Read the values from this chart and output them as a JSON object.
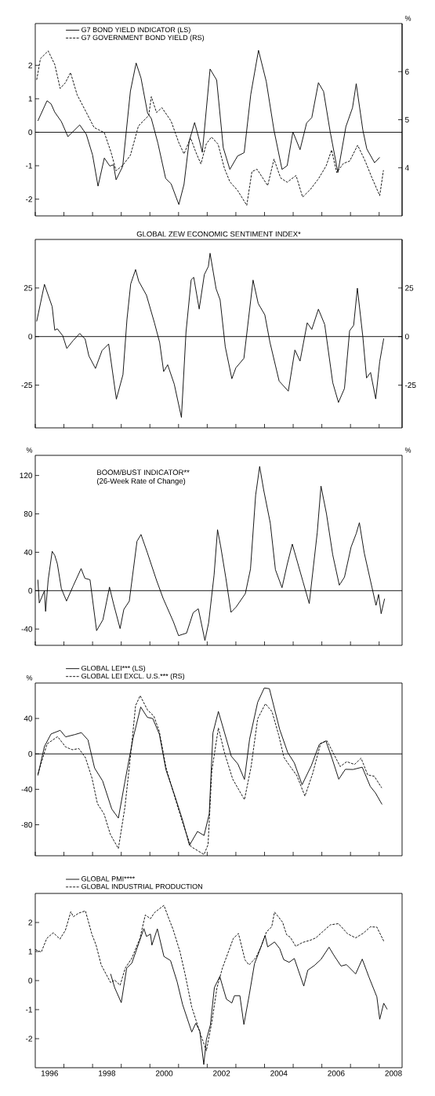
{
  "chart_data": [
    {
      "type": "line",
      "xlim": [
        1996,
        2008.8
      ],
      "ylim": [
        -2.5,
        3.25
      ],
      "yticks": [
        -2,
        -1,
        0,
        1,
        2
      ],
      "y2lim": [
        3,
        7
      ],
      "y2ticks": [
        4,
        5,
        6
      ],
      "y2label": "%",
      "tick_labels": "y",
      "legend": "top left",
      "ref_lines": [
        {
          "axis": "y",
          "value": 0
        }
      ],
      "series": [
        {
          "name": "G7 BOND YIELD INDICATOR (LS)",
          "color": "#000000",
          "line_style": "solid",
          "x": [
            1996.09,
            1996.41,
            1996.55,
            1996.68,
            1996.91,
            1997.14,
            1997.55,
            1997.78,
            1998.0,
            1998.19,
            1998.41,
            1998.6,
            1998.73,
            1998.82,
            1999.05,
            1999.32,
            1999.52,
            1999.69,
            1999.92,
            2000.05,
            2000.28,
            2000.55,
            2000.74,
            2001.01,
            2001.19,
            2001.37,
            2001.56,
            2001.69,
            2001.83,
            2002.1,
            2002.33,
            2002.56,
            2002.79,
            2003.06,
            2003.29,
            2003.52,
            2003.79,
            2004.06,
            2004.33,
            2004.61,
            2004.79,
            2004.99,
            2005.24,
            2005.47,
            2005.65,
            2005.88,
            2006.06,
            2006.29,
            2006.56,
            2006.84,
            2007.07,
            2007.2,
            2007.43,
            2007.57,
            2007.84,
            2008.02
          ],
          "values": [
            0.34,
            0.94,
            0.85,
            0.6,
            0.32,
            -0.13,
            0.22,
            -0.06,
            -0.68,
            -1.61,
            -0.77,
            -1.01,
            -0.97,
            -1.42,
            -1.02,
            1.23,
            2.07,
            1.62,
            0.57,
            0.41,
            -0.33,
            -1.38,
            -1.54,
            -2.16,
            -1.56,
            -0.27,
            0.29,
            -0.12,
            -0.6,
            1.89,
            1.56,
            -0.46,
            -1.11,
            -0.71,
            -0.61,
            1.13,
            2.45,
            1.52,
            0.06,
            -1.11,
            -1.0,
            0.01,
            -0.52,
            0.28,
            0.44,
            1.48,
            1.22,
            0.02,
            -1.2,
            0.17,
            0.73,
            1.45,
            0.07,
            -0.5,
            -0.91,
            -0.75
          ]
        },
        {
          "name": "G7 GOVERNMENT BOND YIELD (RS)",
          "color": "#000000",
          "line_style": "dashed",
          "axis": "y2",
          "x": [
            1996.05,
            1996.18,
            1996.45,
            1996.68,
            1996.87,
            1997.05,
            1997.23,
            1997.46,
            1997.73,
            1998.05,
            1998.41,
            1998.64,
            1998.82,
            1999.05,
            1999.32,
            1999.6,
            1999.96,
            2000.05,
            2000.23,
            2000.42,
            2000.74,
            2001.01,
            2001.19,
            2001.42,
            2001.6,
            2001.78,
            2001.97,
            2002.15,
            2002.38,
            2002.6,
            2002.79,
            2003.06,
            2003.38,
            2003.56,
            2003.74,
            2004.11,
            2004.33,
            2004.56,
            2004.79,
            2005.1,
            2005.33,
            2005.6,
            2005.88,
            2006.15,
            2006.34,
            2006.52,
            2006.75,
            2006.97,
            2007.25,
            2007.52,
            2007.75,
            2008.02,
            2008.15
          ],
          "values": [
            5.83,
            6.27,
            6.43,
            6.15,
            5.65,
            5.77,
            5.98,
            5.52,
            5.21,
            4.84,
            4.73,
            4.33,
            3.94,
            4.05,
            4.26,
            4.87,
            5.09,
            5.48,
            5.15,
            5.25,
            4.97,
            4.52,
            4.29,
            4.62,
            4.33,
            4.08,
            4.5,
            4.64,
            4.49,
            3.99,
            3.71,
            3.53,
            3.22,
            3.92,
            3.97,
            3.63,
            4.18,
            3.79,
            3.7,
            3.84,
            3.39,
            3.55,
            3.77,
            4.04,
            4.37,
            3.9,
            4.09,
            4.14,
            4.47,
            4.13,
            3.79,
            3.42,
            3.95
          ]
        }
      ]
    },
    {
      "type": "line",
      "title": "GLOBAL ZEW ECONOMIC SENTIMENT INDEX*",
      "xlim": [
        1996,
        2008.8
      ],
      "ylim": [
        -47,
        50
      ],
      "yticks": [
        -25,
        0,
        25
      ],
      "y2lim": [
        -47,
        50
      ],
      "y2ticks": [
        -25,
        0,
        25
      ],
      "tick_labels": "y",
      "ref_lines": [
        {
          "axis": "y",
          "value": 0
        }
      ],
      "series": [
        {
          "color": "#000000",
          "line_style": "solid",
          "x": [
            1996.05,
            1996.32,
            1996.59,
            1996.68,
            1996.77,
            1996.96,
            1997.1,
            1997.33,
            1997.55,
            1997.74,
            1997.87,
            1998.1,
            1998.33,
            1998.56,
            1998.83,
            1999.06,
            1999.2,
            1999.33,
            1999.5,
            1999.61,
            1999.88,
            2000.16,
            2000.34,
            2000.48,
            2000.62,
            2000.85,
            2001.1,
            2001.26,
            2001.44,
            2001.53,
            2001.72,
            2001.9,
            2002.04,
            2002.1,
            2002.31,
            2002.45,
            2002.63,
            2002.86,
            2003.0,
            2003.28,
            2003.6,
            2003.78,
            2004.01,
            2004.19,
            2004.51,
            2004.83,
            2005.06,
            2005.24,
            2005.49,
            2005.65,
            2005.88,
            2006.1,
            2006.38,
            2006.58,
            2006.79,
            2006.97,
            2007.11,
            2007.24,
            2007.43,
            2007.56,
            2007.7,
            2007.88,
            2008.02,
            2008.16
          ],
          "values": [
            7.8,
            26.9,
            15.4,
            3.3,
            4.0,
            0.4,
            -6.1,
            -1.9,
            1.6,
            -1.3,
            -9.9,
            -16.4,
            -7.2,
            -3.8,
            -32.2,
            -19.6,
            8.8,
            27.1,
            34.5,
            28.5,
            21.3,
            7.0,
            -3.0,
            -18.0,
            -14.5,
            -24.5,
            -41.6,
            2.3,
            29.2,
            30.5,
            14.2,
            31.9,
            36.1,
            42.9,
            24.6,
            18.9,
            -5.3,
            -21.7,
            -16.1,
            -11.2,
            29.1,
            17,
            11.2,
            -3.0,
            -22.9,
            -28.1,
            -6.9,
            -12.6,
            7.1,
            3.7,
            14.1,
            6.2,
            -23.7,
            -33.9,
            -26.7,
            3.0,
            5.8,
            24.9,
            0,
            -21.3,
            -18.5,
            -32.1,
            -12.9,
            -1.0
          ]
        }
      ]
    },
    {
      "type": "line",
      "title": "BOOM/BUST INDICATOR**",
      "subtitle": "(26-Week Rate of Change)",
      "xlim": [
        1996,
        2008.8
      ],
      "ylim": [
        -57,
        141
      ],
      "yticks": [
        -40,
        0,
        40,
        80,
        120
      ],
      "ylabel": "%",
      "y2label": "%",
      "tick_labels": "y",
      "ref_lines": [
        {
          "axis": "y",
          "value": 0
        }
      ],
      "series": [
        {
          "color": "#000000",
          "line_style": "solid",
          "x": [
            1996.09,
            1996.14,
            1996.32,
            1996.36,
            1996.45,
            1996.59,
            1996.68,
            1996.77,
            1996.91,
            1997.09,
            1997.32,
            1997.6,
            1997.73,
            1997.91,
            1998.14,
            1998.36,
            1998.59,
            1998.73,
            1998.96,
            1999.09,
            1999.28,
            1999.55,
            1999.69,
            1999.91,
            2000.23,
            2000.46,
            2000.82,
            2001.0,
            2001.28,
            2001.51,
            2001.69,
            2001.92,
            2002.05,
            2002.24,
            2002.36,
            2002.47,
            2002.65,
            2002.83,
            2003.01,
            2003.33,
            2003.51,
            2003.69,
            2003.83,
            2003.97,
            2004.2,
            2004.38,
            2004.61,
            2004.79,
            2004.97,
            2005.34,
            2005.56,
            2005.84,
            2005.97,
            2006.16,
            2006.38,
            2006.61,
            2006.79,
            2007.02,
            2007.2,
            2007.31,
            2007.48,
            2007.75,
            2007.89,
            2007.98,
            2008.07,
            2008.19
          ],
          "values": [
            11.4,
            -12.9,
            -0.2,
            -21.6,
            11.1,
            41,
            36.7,
            28,
            2.2,
            -10.8,
            4.7,
            23,
            12.9,
            11.4,
            -41.7,
            -30.4,
            3.7,
            -13.6,
            -39.5,
            -19.6,
            -11,
            51.5,
            58.5,
            39.7,
            10.9,
            -7.9,
            -32.4,
            -46.9,
            -44.2,
            -23,
            -18.9,
            -51.9,
            -33.4,
            16.4,
            63.5,
            46.2,
            13.2,
            -22.6,
            -17,
            -3.1,
            22.5,
            99.5,
            129.4,
            105,
            70.5,
            21.8,
            3.1,
            27.2,
            48.5,
            9.6,
            -13.4,
            60.6,
            109,
            80.4,
            37.3,
            5.7,
            14.1,
            45.4,
            59.5,
            70.8,
            39.3,
            3.3,
            -15.3,
            -4,
            -24,
            -8.4
          ]
        }
      ]
    },
    {
      "type": "line",
      "xlim": [
        1996,
        2008.8
      ],
      "ylim": [
        -115,
        80
      ],
      "yticks": [
        -80,
        -40,
        0,
        40
      ],
      "ylabel": "%",
      "tick_labels": "y",
      "legend": "top",
      "ref_lines": [
        {
          "axis": "y",
          "value": 0
        }
      ],
      "series": [
        {
          "name": "GLOBAL LEI*** (LS)",
          "color": "#000000",
          "line_style": "solid",
          "x": [
            1996.09,
            1996.32,
            1996.55,
            1996.87,
            1997.06,
            1997.38,
            1997.61,
            1997.84,
            1998.07,
            1998.35,
            1998.67,
            1998.9,
            1999.13,
            1999.41,
            1999.68,
            1999.91,
            2000.1,
            2000.33,
            2000.56,
            2000.88,
            2001.15,
            2001.38,
            2001.66,
            2001.89,
            2002.07,
            2002.2,
            2002.39,
            2002.61,
            2002.84,
            2003.07,
            2003.3,
            2003.48,
            2003.76,
            2003.99,
            2004.17,
            2004.53,
            2004.81,
            2005.04,
            2005.31,
            2005.63,
            2005.91,
            2006.14,
            2006.36,
            2006.59,
            2006.82,
            2007.09,
            2007.41,
            2007.69,
            2007.87,
            2008.1
          ],
          "values": [
            -24.4,
            8.4,
            22.5,
            26.6,
            19.2,
            21.8,
            24,
            15.7,
            -16,
            -30.5,
            -62.3,
            -72.5,
            -31.1,
            17.3,
            52.9,
            41.3,
            39.9,
            22.3,
            -18,
            -48.3,
            -75.8,
            -103.2,
            -87.6,
            -92.1,
            -67.9,
            23.7,
            47.9,
            23.3,
            -2.6,
            -11.4,
            -28.8,
            16.9,
            58.2,
            74.4,
            73.6,
            27.5,
            1.5,
            -10.2,
            -34.8,
            -13.5,
            10.6,
            14.7,
            -5.5,
            -28.6,
            -17.4,
            -17.6,
            -15,
            -36.7,
            -44,
            -57
          ]
        },
        {
          "name": "GLOBAL LEI EXCL. U.S.*** (RS)",
          "color": "#000000",
          "line_style": "dashed",
          "x": [
            1996.09,
            1996.41,
            1996.78,
            1997.06,
            1997.29,
            1997.52,
            1997.75,
            1997.98,
            1998.17,
            1998.4,
            1998.62,
            1998.9,
            1999.13,
            1999.36,
            1999.5,
            1999.66,
            1999.91,
            2000.14,
            2000.33,
            2000.56,
            2000.88,
            2001.15,
            2001.43,
            2001.89,
            2002.03,
            2002.16,
            2002.39,
            2002.61,
            2002.89,
            2003.3,
            2003.53,
            2003.76,
            2004.03,
            2004.26,
            2004.49,
            2004.68,
            2004.9,
            2005.13,
            2005.41,
            2005.68,
            2005.96,
            2006.18,
            2006.41,
            2006.64,
            2006.87,
            2007.14,
            2007.37,
            2007.6,
            2007.83,
            2008.09
          ],
          "values": [
            -23,
            11.2,
            19.5,
            7.8,
            4.7,
            6,
            -4.2,
            -27.4,
            -56.2,
            -67.8,
            -90.9,
            -106.9,
            -59.8,
            8.8,
            54.5,
            65.8,
            49.9,
            42.5,
            25.2,
            -15.1,
            -50,
            -78.6,
            -104.6,
            -113.6,
            -102.3,
            -19.3,
            29.3,
            0.4,
            -28.5,
            -51.7,
            -14.7,
            39.6,
            56.6,
            47.8,
            21.8,
            -4.1,
            -14.4,
            -24.6,
            -47.7,
            -22.1,
            12,
            14.7,
            0.2,
            -14.3,
            -8.8,
            -11.9,
            -4.9,
            -23.7,
            -25.3,
            -38.4
          ]
        }
      ]
    },
    {
      "type": "line",
      "xlim": [
        1996,
        2008.8
      ],
      "ylim": [
        -3,
        3
      ],
      "yticks": [
        -2,
        -1,
        0,
        1,
        2
      ],
      "legend": "top",
      "xticks": [
        {
          "value": 1997,
          "label": null
        },
        {
          "value": 1998,
          "label": null
        },
        {
          "value": 1999,
          "label": null
        },
        {
          "value": 2000,
          "label": null
        },
        {
          "value": 2001,
          "label": null
        },
        {
          "value": 2002,
          "label": null
        },
        {
          "value": 2003,
          "label": null
        },
        {
          "value": 2004,
          "label": null
        },
        {
          "value": 2005,
          "label": null
        },
        {
          "value": 2006,
          "label": null
        },
        {
          "value": 2007,
          "label": null
        },
        {
          "value": 2008,
          "label": null
        },
        {
          "value": 1996.5,
          "label": "1996"
        },
        {
          "value": 1998.5,
          "label": "1998"
        },
        {
          "value": 2000.5,
          "label": "2000"
        },
        {
          "value": 2002.5,
          "label": "2002"
        },
        {
          "value": 2004.5,
          "label": "2004"
        },
        {
          "value": 2006.5,
          "label": "2006"
        },
        {
          "value": 2008.5,
          "label": "2008"
        }
      ],
      "series": [
        {
          "name": "GLOBAL PMI****",
          "color": "#000000",
          "line_style": "solid",
          "x": [
            1998.63,
            1998.77,
            1999.0,
            1999.19,
            1999.37,
            1999.61,
            1999.79,
            1999.88,
            2000.02,
            2000.07,
            2000.26,
            2000.49,
            2000.72,
            2000.95,
            2001.14,
            2001.46,
            2001.6,
            2001.74,
            2001.88,
            2001.97,
            2002.11,
            2002.25,
            2002.44,
            2002.53,
            2002.67,
            2002.86,
            2002.95,
            2003.14,
            2003.28,
            2003.46,
            2003.65,
            2003.83,
            2004.02,
            2004.11,
            2004.35,
            2004.53,
            2004.67,
            2004.86,
            2005.04,
            2005.37,
            2005.51,
            2005.74,
            2005.97,
            2006.25,
            2006.44,
            2006.67,
            2006.86,
            2007.18,
            2007.41,
            2007.64,
            2007.92,
            2008.02,
            2008.16,
            2008.28
          ],
          "values": [
            0.23,
            -0.24,
            -0.76,
            0.43,
            0.6,
            1.28,
            1.79,
            1.52,
            1.6,
            1.22,
            1.78,
            0.83,
            0.69,
            -0.04,
            -0.82,
            -1.77,
            -1.47,
            -1.73,
            -2.89,
            -2.04,
            -1.53,
            -0.24,
            0.14,
            -0.17,
            -0.64,
            -0.77,
            -0.52,
            -0.52,
            -1.51,
            -0.53,
            0.58,
            1.04,
            1.55,
            1.16,
            1.33,
            1.1,
            0.72,
            0.63,
            0.76,
            -0.19,
            0.36,
            0.52,
            0.73,
            1.15,
            0.84,
            0.5,
            0.55,
            0.23,
            0.74,
            0.13,
            -0.56,
            -1.33,
            -0.78,
            -0.99
          ]
        },
        {
          "name": "GLOBAL INDUSTRIAL PRODUCTION",
          "color": "#000000",
          "line_style": "dashed",
          "x": [
            1996.0,
            1996.21,
            1996.4,
            1996.63,
            1996.86,
            1997.05,
            1997.24,
            1997.33,
            1997.51,
            1997.75,
            1997.98,
            1998.12,
            1998.3,
            1998.63,
            1998.77,
            1998.96,
            1999.14,
            1999.37,
            1999.65,
            1999.84,
            2000.02,
            2000.16,
            2000.49,
            2000.67,
            2000.81,
            2001.05,
            2001.23,
            2001.46,
            2001.74,
            2001.97,
            2002.16,
            2002.34,
            2002.53,
            2002.72,
            2002.91,
            2003.09,
            2003.32,
            2003.46,
            2003.7,
            2003.88,
            2004.07,
            2004.25,
            2004.35,
            2004.63,
            2004.77,
            2004.9,
            2005.09,
            2005.32,
            2005.6,
            2005.79,
            2006.07,
            2006.3,
            2006.58,
            2006.9,
            2007.18,
            2007.46,
            2007.69,
            2007.92,
            2008.16
          ],
          "values": [
            1.07,
            0.98,
            1.45,
            1.65,
            1.43,
            1.73,
            2.37,
            2.2,
            2.32,
            2.4,
            1.58,
            1.23,
            0.54,
            -0.07,
            0.02,
            -0.16,
            0.43,
            0.77,
            1.45,
            2.26,
            2.13,
            2.34,
            2.59,
            2.11,
            1.76,
            0.99,
            0.21,
            -0.91,
            -1.77,
            -2.42,
            -1.44,
            -0.25,
            0.43,
            0.94,
            1.45,
            1.62,
            0.71,
            0.54,
            0.79,
            1.17,
            1.68,
            1.85,
            2.36,
            2.01,
            1.58,
            1.49,
            1.18,
            1.31,
            1.39,
            1.47,
            1.72,
            1.92,
            1.96,
            1.61,
            1.47,
            1.64,
            1.85,
            1.84,
            1.36
          ]
        }
      ]
    }
  ]
}
